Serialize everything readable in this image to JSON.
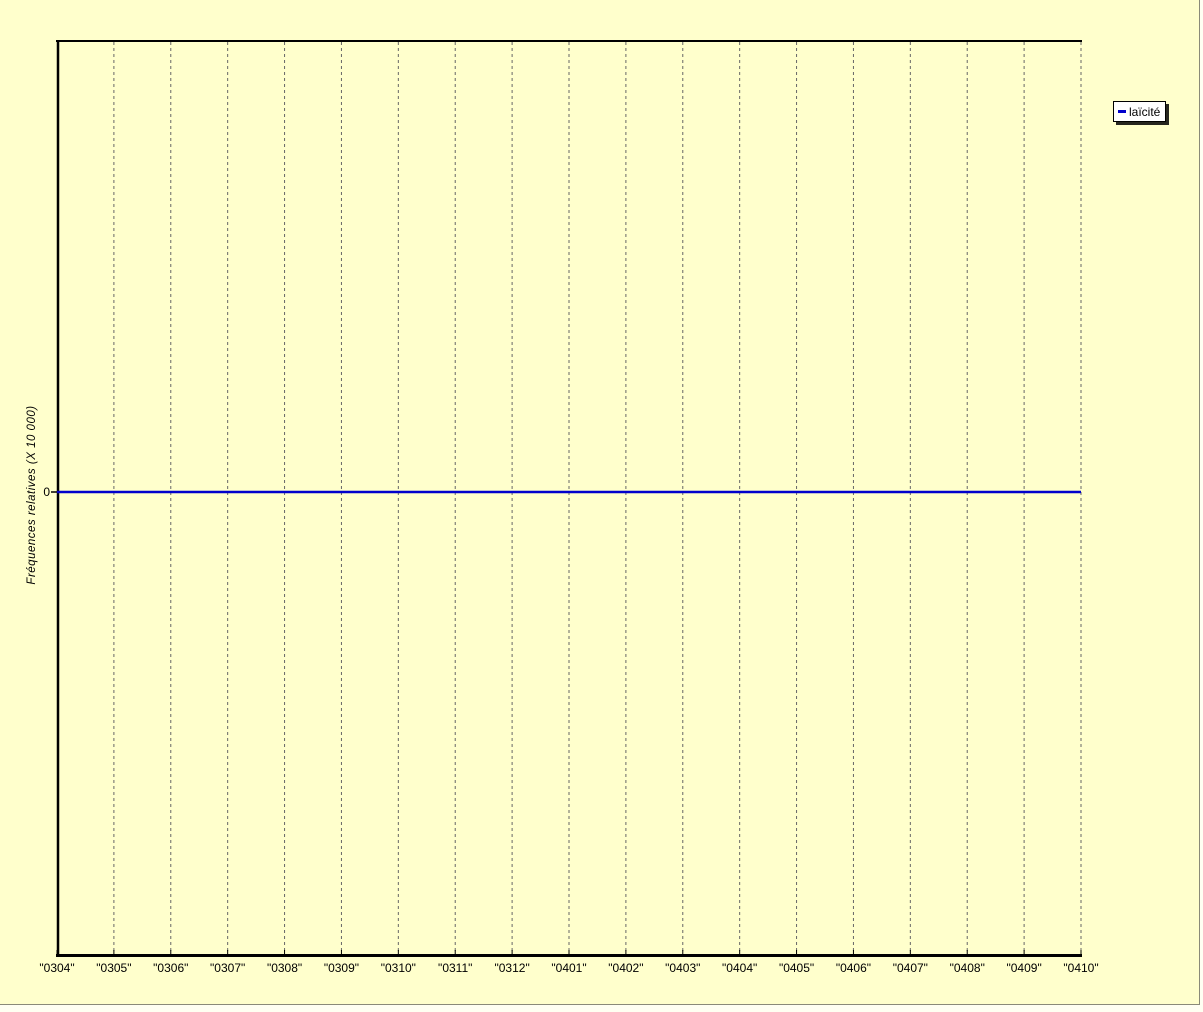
{
  "window": {
    "background_color": "#ffffcc",
    "frame_edge_color": "#8a8a78"
  },
  "colors": {
    "background": "#ffffcc",
    "axis": "#000000",
    "gridline": "#666666",
    "series_line": "#0000cc",
    "legend_background": "#ffffff",
    "legend_border": "#000000"
  },
  "legend": {
    "label": "laïcité",
    "marker_color": "#0000cc"
  },
  "chart_data": {
    "type": "line",
    "title": "",
    "xlabel": "",
    "ylabel": "Fréquences relatives (X 10 000)",
    "y_tick_label": "0",
    "categories": [
      "0304",
      "0305",
      "0306",
      "0307",
      "0308",
      "0309",
      "0310",
      "0311",
      "0312",
      "0401",
      "0402",
      "0403",
      "0404",
      "0405",
      "0406",
      "0407",
      "0408",
      "0409",
      "0410"
    ],
    "x_tick_labels": [
      "\"0304\"",
      "\"0305\"",
      "\"0306\"",
      "\"0307\"",
      "\"0308\"",
      "\"0309\"",
      "\"0310\"",
      "\"0311\"",
      "\"0312\"",
      "\"0401\"",
      "\"0402\"",
      "\"0403\"",
      "\"0404\"",
      "\"0405\"",
      "\"0406\"",
      "\"0407\"",
      "\"0408\"",
      "\"0409\"",
      "\"0410\""
    ],
    "series": [
      {
        "name": "laïcité",
        "color": "#0000cc",
        "values": [
          0,
          0,
          0,
          0,
          0,
          0,
          0,
          0,
          0,
          0,
          0,
          0,
          0,
          0,
          0,
          0,
          0,
          0,
          0
        ]
      }
    ],
    "grid": "vertical-dashed",
    "legend_position": "outside-top-right",
    "y_zero_only": true
  }
}
